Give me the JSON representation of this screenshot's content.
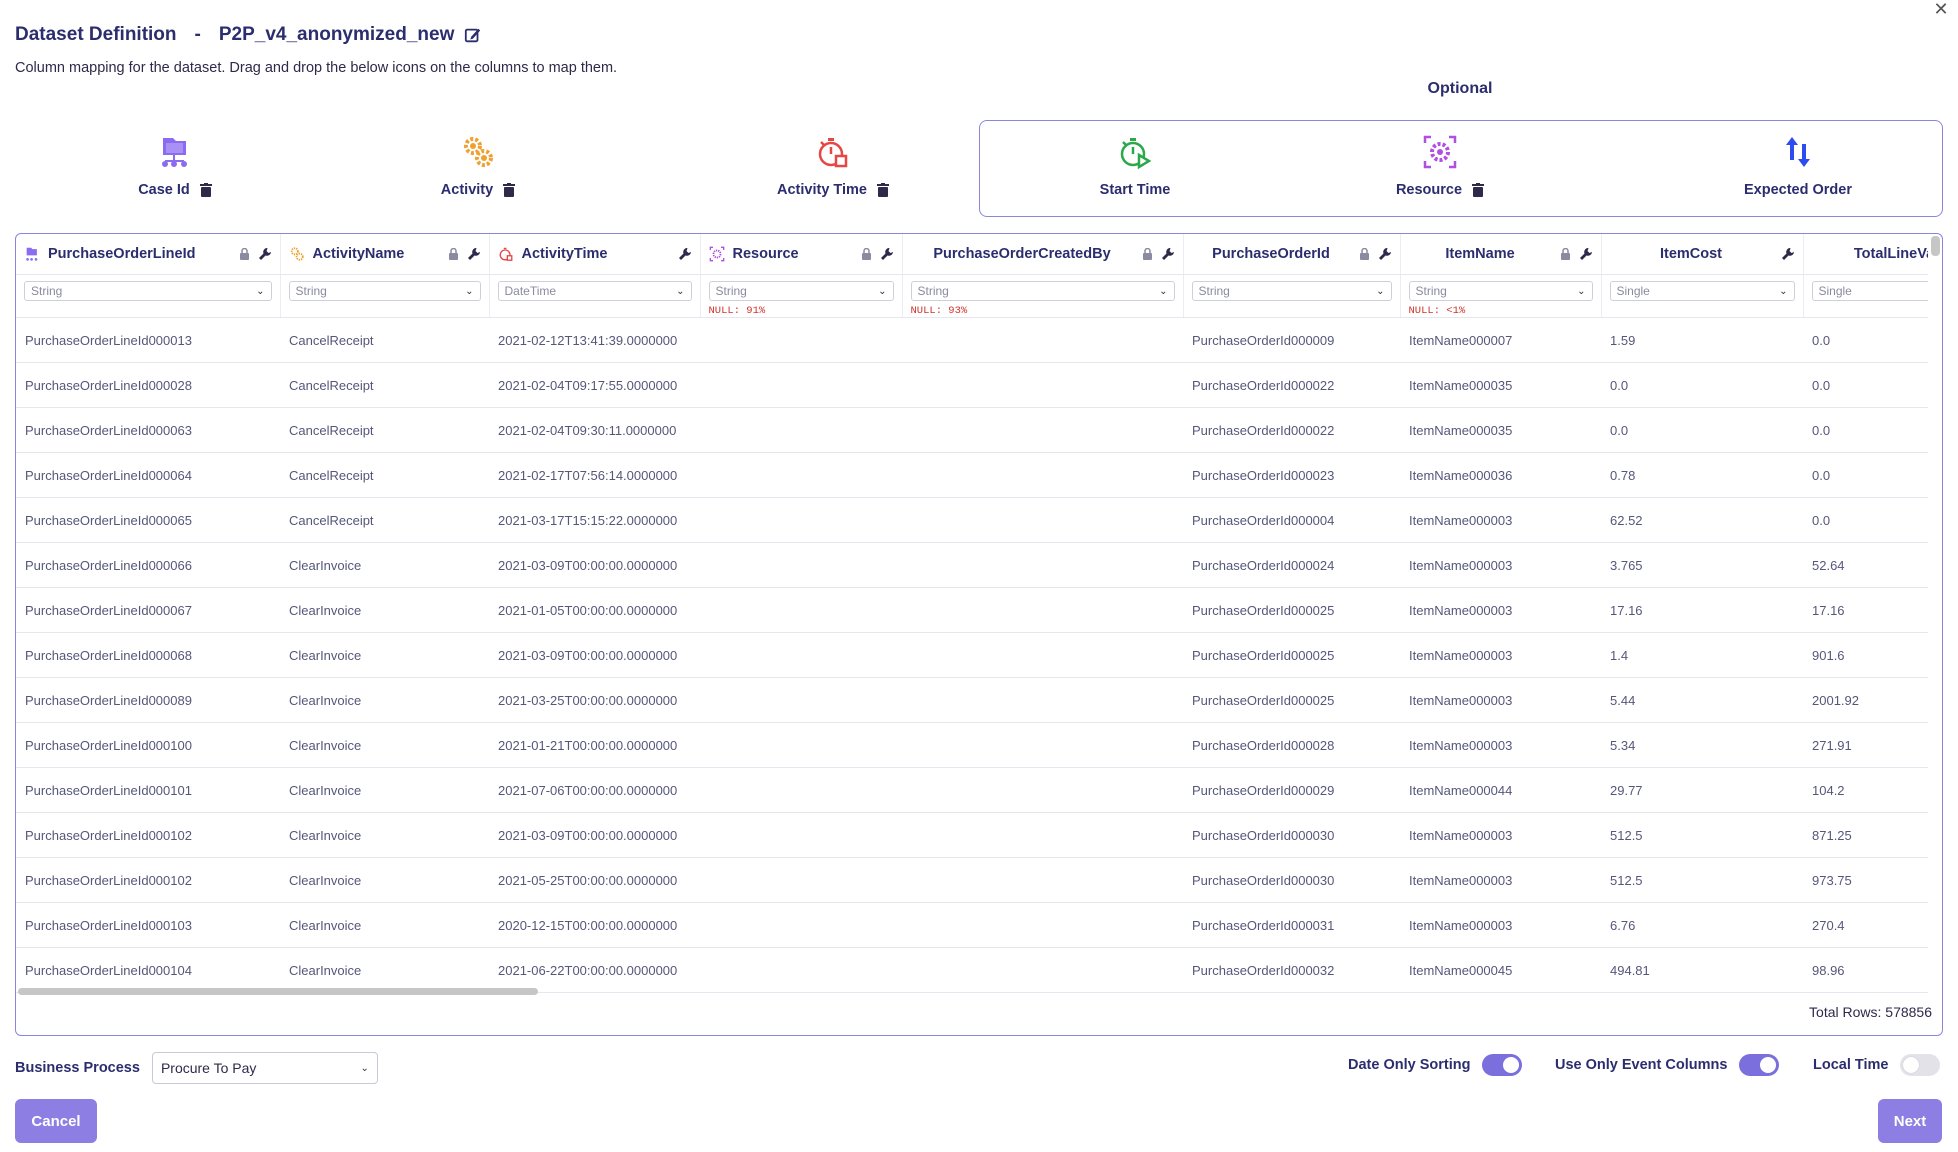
{
  "header": {
    "title_prefix": "Dataset Definition",
    "separator": "-",
    "dataset_name": "P2P_v4_anonymized_new",
    "subtitle": "Column mapping for the dataset. Drag and drop the below icons on the columns to map them.",
    "optional_label": "Optional"
  },
  "mapping": [
    {
      "label": "Case Id",
      "icon": "case-id-icon",
      "color": "#8b6cf0",
      "deletable": true
    },
    {
      "label": "Activity",
      "icon": "gears-icon",
      "color": "#f0a030",
      "deletable": true
    },
    {
      "label": "Activity Time",
      "icon": "stopwatch-icon",
      "color": "#e84545",
      "deletable": true
    },
    {
      "label": "Start Time",
      "icon": "stopwatch-play-icon",
      "color": "#2aa84a",
      "deletable": false
    },
    {
      "label": "Resource",
      "icon": "resource-gear-icon",
      "color": "#b04fe0",
      "deletable": true
    },
    {
      "label": "Expected Order",
      "icon": "sort-arrows-icon",
      "color": "#2d4cf0",
      "deletable": false
    }
  ],
  "columns": [
    {
      "name": "PurchaseOrderLineId",
      "type": "String",
      "null_note": "",
      "mapped_icon": "case-id-icon"
    },
    {
      "name": "ActivityName",
      "type": "String",
      "null_note": "",
      "mapped_icon": "gears-icon"
    },
    {
      "name": "ActivityTime",
      "type": "DateTime",
      "null_note": "",
      "mapped_icon": "stopwatch-icon"
    },
    {
      "name": "Resource",
      "type": "String",
      "null_note": "NULL: 91%",
      "mapped_icon": "resource-gear-icon"
    },
    {
      "name": "PurchaseOrderCreatedBy",
      "type": "String",
      "null_note": "NULL: 93%",
      "mapped_icon": ""
    },
    {
      "name": "PurchaseOrderId",
      "type": "String",
      "null_note": "",
      "mapped_icon": ""
    },
    {
      "name": "ItemName",
      "type": "String",
      "null_note": "NULL: <1%",
      "mapped_icon": ""
    },
    {
      "name": "ItemCost",
      "type": "Single",
      "null_note": "",
      "mapped_icon": ""
    },
    {
      "name": "TotalLineValue",
      "type": "Single",
      "null_note": "",
      "mapped_icon": ""
    }
  ],
  "rows": [
    [
      "PurchaseOrderLineId000013",
      "CancelReceipt",
      "2021-02-12T13:41:39.0000000",
      "",
      "",
      "PurchaseOrderId000009",
      "ItemName000007",
      "1.59",
      "0.0"
    ],
    [
      "PurchaseOrderLineId000028",
      "CancelReceipt",
      "2021-02-04T09:17:55.0000000",
      "",
      "",
      "PurchaseOrderId000022",
      "ItemName000035",
      "0.0",
      "0.0"
    ],
    [
      "PurchaseOrderLineId000063",
      "CancelReceipt",
      "2021-02-04T09:30:11.0000000",
      "",
      "",
      "PurchaseOrderId000022",
      "ItemName000035",
      "0.0",
      "0.0"
    ],
    [
      "PurchaseOrderLineId000064",
      "CancelReceipt",
      "2021-02-17T07:56:14.0000000",
      "",
      "",
      "PurchaseOrderId000023",
      "ItemName000036",
      "0.78",
      "0.0"
    ],
    [
      "PurchaseOrderLineId000065",
      "CancelReceipt",
      "2021-03-17T15:15:22.0000000",
      "",
      "",
      "PurchaseOrderId000004",
      "ItemName000003",
      "62.52",
      "0.0"
    ],
    [
      "PurchaseOrderLineId000066",
      "ClearInvoice",
      "2021-03-09T00:00:00.0000000",
      "",
      "",
      "PurchaseOrderId000024",
      "ItemName000003",
      "3.765",
      "52.64"
    ],
    [
      "PurchaseOrderLineId000067",
      "ClearInvoice",
      "2021-01-05T00:00:00.0000000",
      "",
      "",
      "PurchaseOrderId000025",
      "ItemName000003",
      "17.16",
      "17.16"
    ],
    [
      "PurchaseOrderLineId000068",
      "ClearInvoice",
      "2021-03-09T00:00:00.0000000",
      "",
      "",
      "PurchaseOrderId000025",
      "ItemName000003",
      "1.4",
      "901.6"
    ],
    [
      "PurchaseOrderLineId000089",
      "ClearInvoice",
      "2021-03-25T00:00:00.0000000",
      "",
      "",
      "PurchaseOrderId000025",
      "ItemName000003",
      "5.44",
      "2001.92"
    ],
    [
      "PurchaseOrderLineId000100",
      "ClearInvoice",
      "2021-01-21T00:00:00.0000000",
      "",
      "",
      "PurchaseOrderId000028",
      "ItemName000003",
      "5.34",
      "271.91"
    ],
    [
      "PurchaseOrderLineId000101",
      "ClearInvoice",
      "2021-07-06T00:00:00.0000000",
      "",
      "",
      "PurchaseOrderId000029",
      "ItemName000044",
      "29.77",
      "104.2"
    ],
    [
      "PurchaseOrderLineId000102",
      "ClearInvoice",
      "2021-03-09T00:00:00.0000000",
      "",
      "",
      "PurchaseOrderId000030",
      "ItemName000003",
      "512.5",
      "871.25"
    ],
    [
      "PurchaseOrderLineId000102",
      "ClearInvoice",
      "2021-05-25T00:00:00.0000000",
      "",
      "",
      "PurchaseOrderId000030",
      "ItemName000003",
      "512.5",
      "973.75"
    ],
    [
      "PurchaseOrderLineId000103",
      "ClearInvoice",
      "2020-12-15T00:00:00.0000000",
      "",
      "",
      "PurchaseOrderId000031",
      "ItemName000003",
      "6.76",
      "270.4"
    ],
    [
      "PurchaseOrderLineId000104",
      "ClearInvoice",
      "2021-06-22T00:00:00.0000000",
      "",
      "",
      "PurchaseOrderId000032",
      "ItemName000045",
      "494.81",
      "98.96"
    ]
  ],
  "total_rows_text": "Total Rows: 578856",
  "footer": {
    "business_process_label": "Business Process",
    "business_process_value": "Procure To Pay",
    "toggles": [
      {
        "label": "Date Only Sorting",
        "on": true
      },
      {
        "label": "Use Only Event Columns",
        "on": true
      },
      {
        "label": "Local Time",
        "on": false
      }
    ],
    "cancel_label": "Cancel",
    "next_label": "Next"
  },
  "colors": {
    "accent": "#8c7ee2",
    "border": "#8a86e0",
    "title": "#2b2d6e",
    "null_note": "#d0342c"
  }
}
